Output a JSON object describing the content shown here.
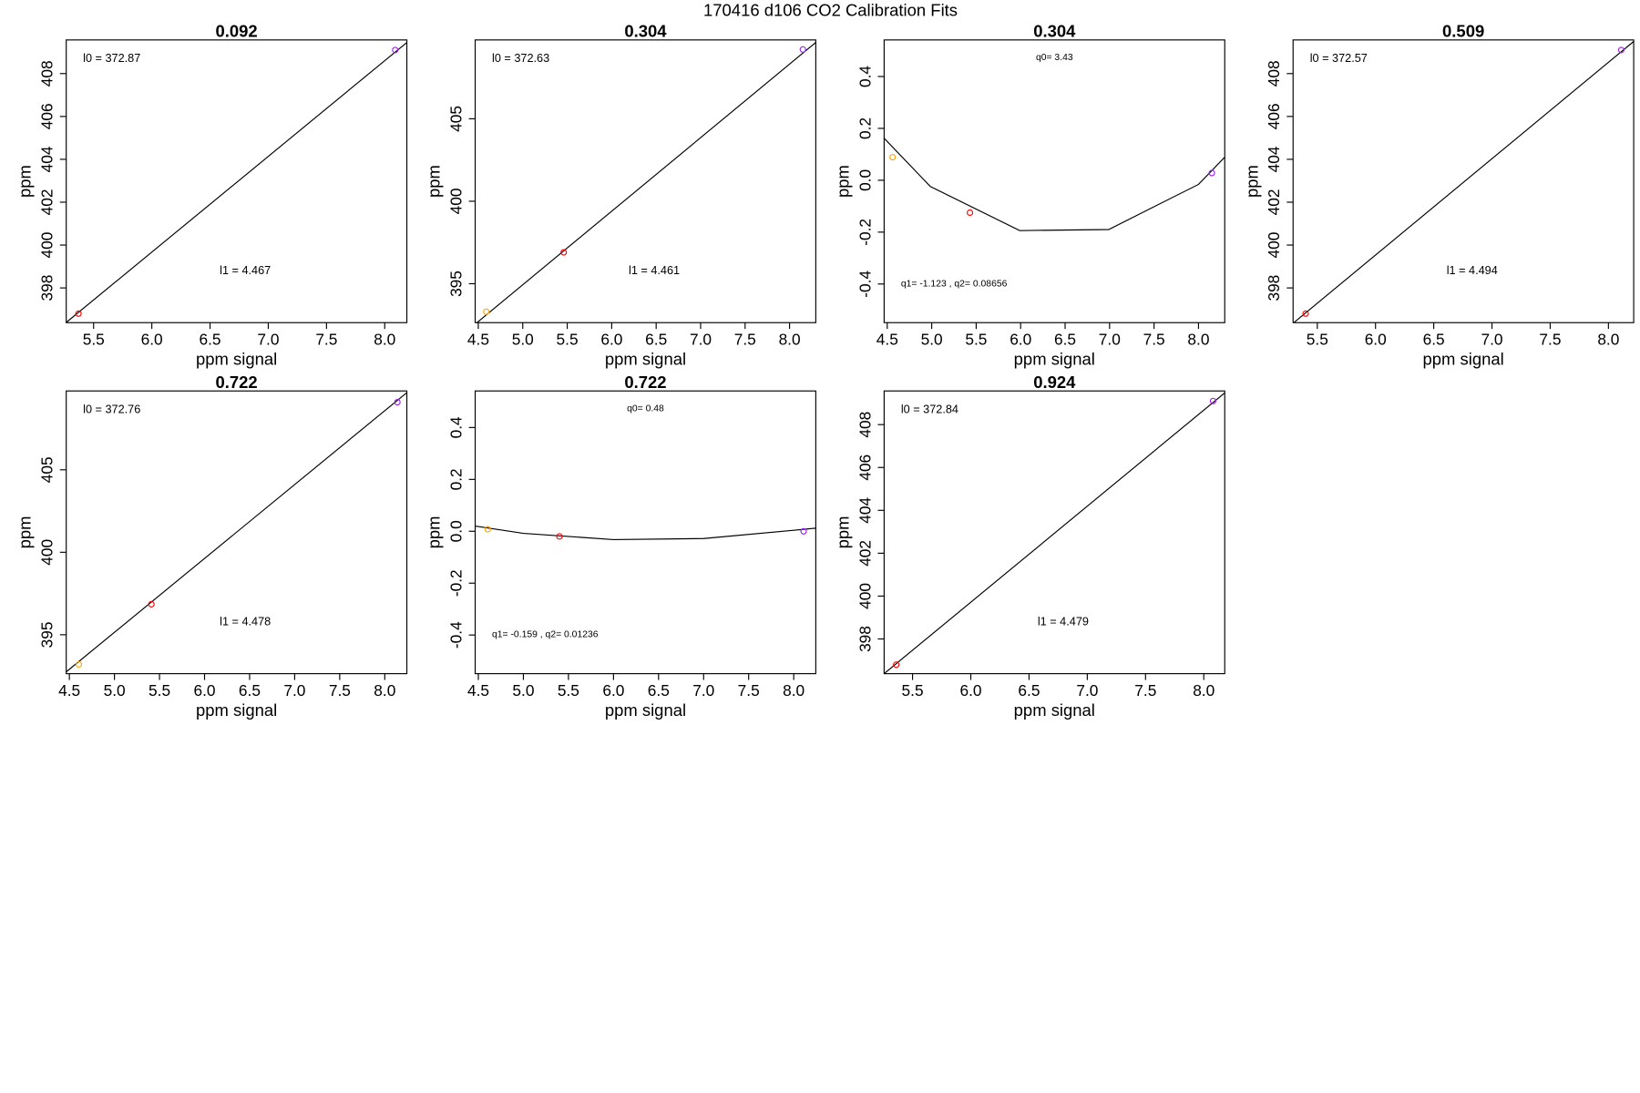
{
  "title": "170416   d106   CO2 Calibration Fits",
  "chart_data": [
    {
      "type": "scatter",
      "title": "0.092",
      "x_label": "ppm signal",
      "y_label": "ppm",
      "xlim": [
        5.265,
        8.19
      ],
      "ylim": [
        396.38,
        409.57
      ],
      "xticks": [
        5.5,
        {
          "value": 6,
          "label": "6.0"
        },
        6.5,
        {
          "value": 7,
          "label": "7.0"
        },
        7.5,
        {
          "value": 8,
          "label": "8.0"
        }
      ],
      "yticks": [
        398,
        400,
        402,
        404,
        406,
        408
      ],
      "points": {
        "x": [
          5.37,
          8.09
        ],
        "values": [
          396.8,
          409.1
        ],
        "colors": [
          "#ff0000",
          "#a020f0"
        ]
      },
      "fit": {
        "x": [
          5.265,
          8.19
        ],
        "values": [
          396.39,
          409.45
        ],
        "color": "#000000"
      },
      "annotations": [
        "l0 =  372.87",
        "l1 =  4.467"
      ]
    },
    {
      "type": "scatter",
      "title": "0.304",
      "x_label": "ppm signal",
      "y_label": "ppm",
      "xlim": [
        4.465,
        8.295
      ],
      "ylim": [
        392.64,
        409.78
      ],
      "xticks": [
        4.5,
        {
          "value": 5,
          "label": "5.0"
        },
        5.5,
        {
          "value": 6,
          "label": "6.0"
        },
        6.5,
        {
          "value": 7,
          "label": "7.0"
        },
        7.5,
        {
          "value": 8,
          "label": "8.0"
        }
      ],
      "yticks": [
        395,
        400,
        405
      ],
      "points": {
        "x": [
          4.59,
          5.46,
          8.15
        ],
        "values": [
          393.3,
          396.9,
          409.2
        ],
        "colors": [
          "#ffa500",
          "#ff0000",
          "#a020f0"
        ]
      },
      "fit": {
        "x": [
          4.465,
          8.295
        ],
        "values": [
          392.55,
          409.63
        ],
        "color": "#000000"
      },
      "annotations": [
        "l0 =  372.63",
        "l1 =  4.461"
      ]
    },
    {
      "type": "scatter",
      "title": "0.304",
      "x_label": "ppm signal",
      "y_label": "ppm",
      "xlim": [
        4.465,
        8.295
      ],
      "ylim": [
        -0.549,
        0.541
      ],
      "xticks": [
        4.5,
        {
          "value": 5,
          "label": "5.0"
        },
        5.5,
        {
          "value": 6,
          "label": "6.0"
        },
        6.5,
        {
          "value": 7,
          "label": "7.0"
        },
        7.5,
        {
          "value": 8,
          "label": "8.0"
        }
      ],
      "yticks": [
        -0.4,
        -0.2,
        {
          "value": 0,
          "label": "0.0"
        },
        0.2,
        0.4
      ],
      "points": {
        "x": [
          4.56,
          5.43,
          8.15
        ],
        "values": [
          0.089,
          -0.125,
          0.028
        ],
        "colors": [
          "#ffa500",
          "#ff0000",
          "#a020f0"
        ]
      },
      "fit": {
        "x": [
          4.465,
          4.985,
          5.99,
          6.99,
          8.0,
          8.295
        ],
        "values": [
          0.162,
          -0.024,
          -0.194,
          -0.19,
          -0.016,
          0.089
        ],
        "color": "#000000"
      },
      "annotations": [
        "q0= 3.43",
        "q1= -1.123 , q2= 0.08656"
      ]
    },
    {
      "type": "scatter",
      "title": "0.509",
      "x_label": "ppm signal",
      "y_label": "ppm",
      "xlim": [
        5.292,
        8.217
      ],
      "ylim": [
        396.38,
        409.57
      ],
      "xticks": [
        5.5,
        {
          "value": 6,
          "label": "6.0"
        },
        6.5,
        {
          "value": 7,
          "label": "7.0"
        },
        7.5,
        {
          "value": 8,
          "label": "8.0"
        }
      ],
      "yticks": [
        398,
        400,
        402,
        404,
        406,
        408
      ],
      "points": {
        "x": [
          5.4,
          8.11
        ],
        "values": [
          396.8,
          409.1
        ],
        "colors": [
          "#ff0000",
          "#a020f0"
        ]
      },
      "fit": {
        "x": [
          5.292,
          8.217
        ],
        "values": [
          396.35,
          409.5
        ],
        "color": "#000000"
      },
      "annotations": [
        "l0 =  372.57",
        "l1 =  4.494"
      ]
    },
    {
      "type": "scatter",
      "title": "0.722",
      "x_label": "ppm signal",
      "y_label": "ppm",
      "xlim": [
        4.465,
        8.245
      ],
      "ylim": [
        392.64,
        409.78
      ],
      "xticks": [
        4.5,
        {
          "value": 5,
          "label": "5.0"
        },
        5.5,
        {
          "value": 6,
          "label": "6.0"
        },
        6.5,
        {
          "value": 7,
          "label": "7.0"
        },
        7.5,
        {
          "value": 8,
          "label": "8.0"
        }
      ],
      "yticks": [
        395,
        400,
        405
      ],
      "points": {
        "x": [
          4.605,
          5.41,
          8.14
        ],
        "values": [
          393.2,
          396.85,
          409.1
        ],
        "colors": [
          "#ffa500",
          "#ff0000",
          "#a020f0"
        ]
      },
      "fit": {
        "x": [
          4.465,
          8.245
        ],
        "values": [
          392.75,
          409.68
        ],
        "color": "#000000"
      },
      "annotations": [
        "l0 =  372.76",
        "l1 =  4.478"
      ]
    },
    {
      "type": "scatter",
      "title": "0.722",
      "x_label": "ppm signal",
      "y_label": "ppm",
      "xlim": [
        4.465,
        8.245
      ],
      "ylim": [
        -0.549,
        0.541
      ],
      "xticks": [
        4.5,
        {
          "value": 5,
          "label": "5.0"
        },
        5.5,
        {
          "value": 6,
          "label": "6.0"
        },
        6.5,
        {
          "value": 7,
          "label": "7.0"
        },
        7.5,
        {
          "value": 8,
          "label": "8.0"
        }
      ],
      "yticks": [
        -0.4,
        -0.2,
        {
          "value": 0,
          "label": "0.0"
        },
        0.2,
        0.4
      ],
      "points": {
        "x": [
          4.605,
          5.4,
          8.11
        ],
        "values": [
          0.008,
          -0.02,
          0.0
        ],
        "colors": [
          "#ffa500",
          "#ff0000",
          "#a020f0"
        ]
      },
      "fit": {
        "x": [
          4.465,
          5.0,
          6.0,
          7.0,
          8.0,
          8.245
        ],
        "values": [
          0.02,
          -0.008,
          -0.032,
          -0.028,
          0.004,
          0.012
        ],
        "color": "#000000"
      },
      "annotations": [
        "q0= 0.48",
        "q1= -0.159 , q2= 0.01236"
      ]
    },
    {
      "type": "scatter",
      "title": "0.924",
      "x_label": "ppm signal",
      "y_label": "ppm",
      "xlim": [
        5.256,
        8.18
      ],
      "ylim": [
        396.38,
        409.57
      ],
      "xticks": [
        5.5,
        {
          "value": 6,
          "label": "6.0"
        },
        6.5,
        {
          "value": 7,
          "label": "7.0"
        },
        7.5,
        {
          "value": 8,
          "label": "8.0"
        }
      ],
      "yticks": [
        398,
        400,
        402,
        404,
        406,
        408
      ],
      "points": {
        "x": [
          5.36,
          8.08
        ],
        "values": [
          396.8,
          409.1
        ],
        "colors": [
          "#ff0000",
          "#a020f0"
        ]
      },
      "fit": {
        "x": [
          5.256,
          8.18
        ],
        "values": [
          396.38,
          409.48
        ],
        "color": "#000000"
      },
      "annotations": [
        "l0 =  372.84",
        "l1 =  4.479"
      ]
    }
  ]
}
